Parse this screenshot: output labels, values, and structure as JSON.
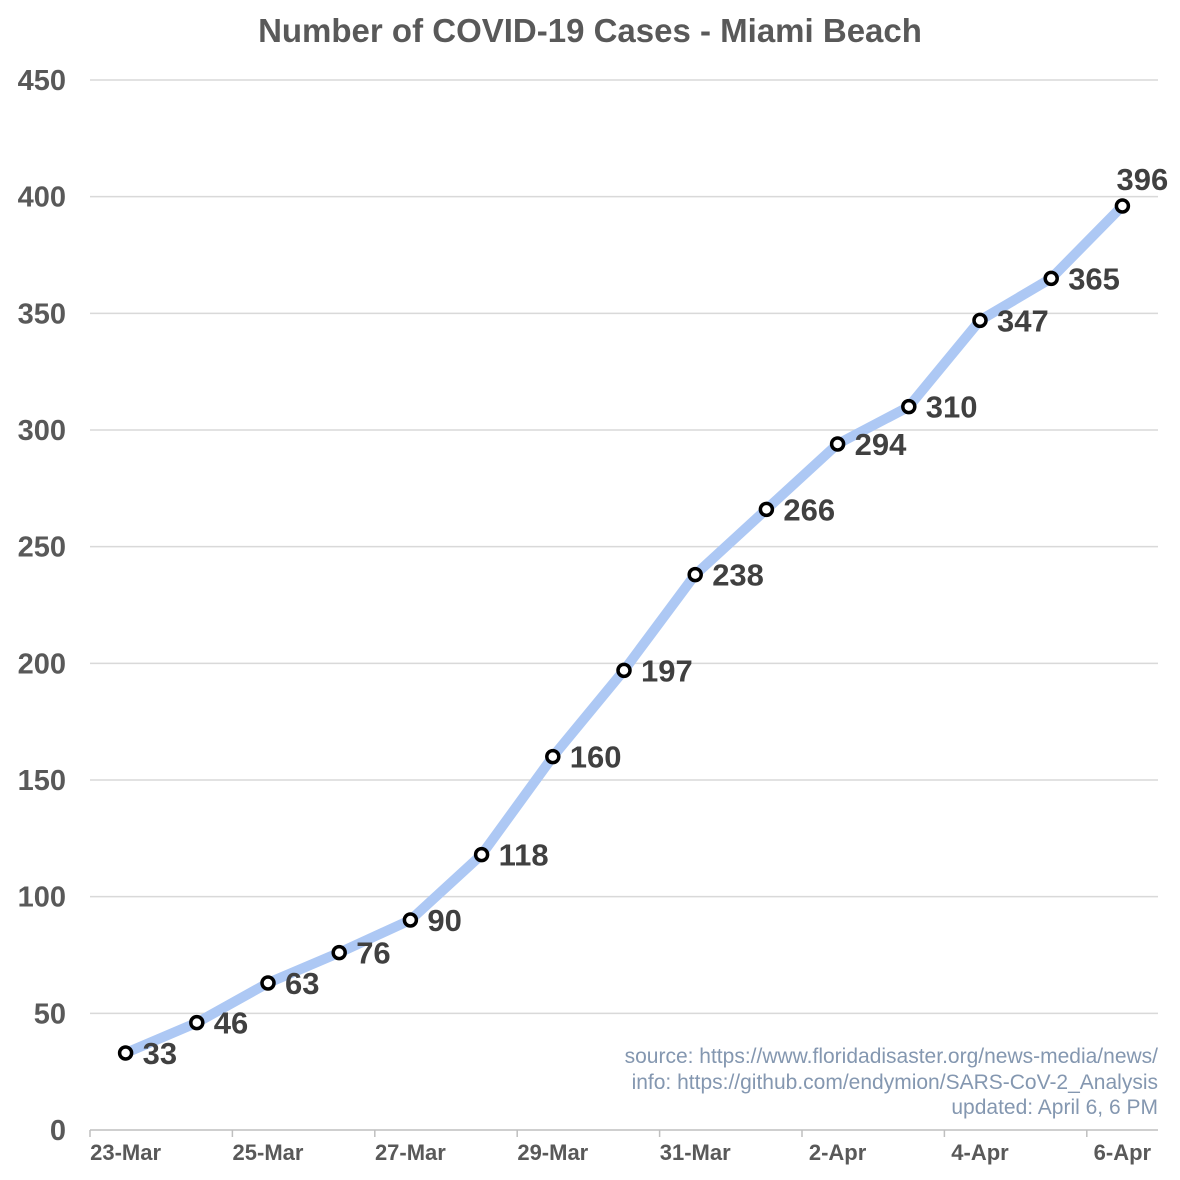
{
  "chart_data": {
    "type": "line",
    "title": "Number of COVID-19 Cases - Miami Beach",
    "xlabel": "",
    "ylabel": "",
    "ylim": [
      0,
      450
    ],
    "yticks": [
      "0",
      "50",
      "100",
      "150",
      "200",
      "250",
      "300",
      "350",
      "400",
      "450"
    ],
    "x_tick_labels": [
      "23-Mar",
      "25-Mar",
      "27-Mar",
      "29-Mar",
      "31-Mar",
      "2-Apr",
      "4-Apr",
      "6-Apr"
    ],
    "grid": true,
    "x": [
      "23-Mar",
      "24-Mar",
      "25-Mar",
      "26-Mar",
      "27-Mar",
      "28-Mar",
      "29-Mar",
      "30-Mar",
      "31-Mar",
      "1-Apr",
      "2-Apr",
      "3-Apr",
      "4-Apr",
      "5-Apr",
      "6-Apr"
    ],
    "series": [
      {
        "values": [
          33,
          46,
          63,
          76,
          90,
          118,
          160,
          197,
          238,
          266,
          294,
          310,
          347,
          365,
          396
        ],
        "color": "#adc8f4",
        "marker_color": "#000000"
      }
    ],
    "data_labels": [
      "33",
      "46",
      "63",
      "76",
      "90",
      "118",
      "160",
      "197",
      "238",
      "266",
      "294",
      "310",
      "347",
      "365",
      "396"
    ],
    "annotations": [
      "source: https://www.floridadisaster.org/news-media/news/",
      "info: https://github.com/endymion/SARS-CoV-2_Analysis",
      "updated: April 6, 6 PM"
    ]
  }
}
